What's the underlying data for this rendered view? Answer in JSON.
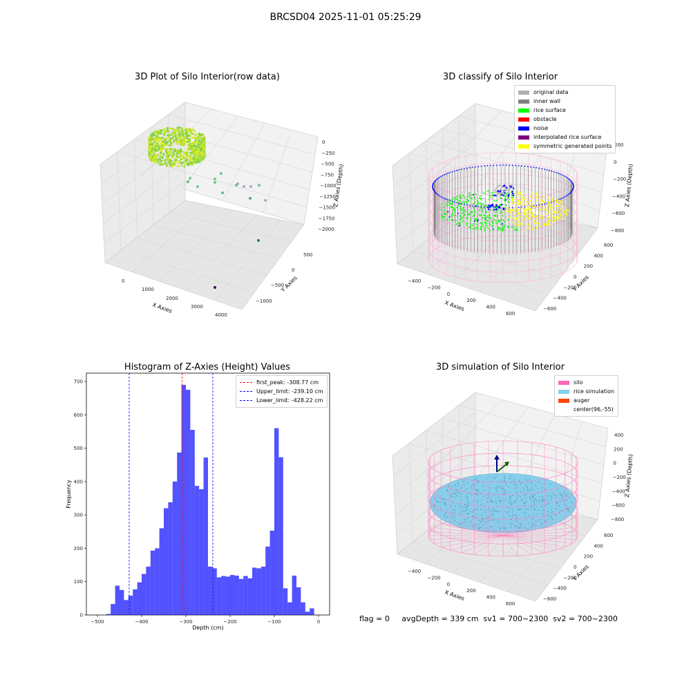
{
  "suptitle": "BRCSD04 2025-11-01 05:25:29",
  "panels": {
    "raw": {
      "title": "3D Plot of Silo Interior(row data)",
      "xlabel": "X Axies",
      "ylabel": "Y Axies",
      "zlabel": "Z Axies (Depth)",
      "xticks": [
        "0",
        "1000",
        "2000",
        "3000",
        "4000"
      ],
      "yticks": [
        "500",
        "0",
        "−500",
        "−1000"
      ],
      "zticks": [
        "0",
        "−250",
        "−500",
        "−750",
        "−1000",
        "−1250",
        "−1500",
        "−1750",
        "−2000"
      ]
    },
    "classify": {
      "title": "3D classify of Silo Interior",
      "xlabel": "X Axies",
      "ylabel": "Y Axies",
      "zlabel": "Z Axies (Depth)",
      "xticks": [
        "−400",
        "−200",
        "0",
        "200",
        "400",
        "600"
      ],
      "yticks": [
        "600",
        "400",
        "200",
        "0",
        "−200",
        "−400",
        "−600"
      ],
      "zticks": [
        "200",
        "0",
        "−200",
        "−400",
        "−600",
        "−800"
      ],
      "legend": [
        {
          "label": "original data",
          "color": "#b0b0b0"
        },
        {
          "label": "inner wall",
          "color": "#808080"
        },
        {
          "label": "rice surface",
          "color": "#00ff00"
        },
        {
          "label": "obstacle",
          "color": "#ff0000"
        },
        {
          "label": "noise",
          "color": "#0000ff"
        },
        {
          "label": "interpolated rice surface",
          "color": "#800080"
        },
        {
          "label": "symmetric generated points",
          "color": "#ffff00"
        }
      ]
    },
    "simulation": {
      "title": "3D simulation of Silo Interior",
      "xlabel": "X Axies",
      "ylabel": "Y Axies",
      "zlabel": "Z Axies (Depth)",
      "xticks": [
        "−400",
        "−200",
        "0",
        "200",
        "400",
        "600"
      ],
      "yticks": [
        "600",
        "400",
        "200",
        "0",
        "−200",
        "−400",
        "−600"
      ],
      "zticks": [
        "400",
        "200",
        "0",
        "−200",
        "−400",
        "−600",
        "−800"
      ],
      "legend": [
        {
          "label": "silo",
          "color": "#ff69b4"
        },
        {
          "label": "rice simulation",
          "color": "#87ceeb"
        },
        {
          "label": "auger",
          "color": "#ff4500"
        },
        {
          "label": "center(96,-55)",
          "color": "#ffffff"
        }
      ]
    }
  },
  "chart_data": [
    {
      "type": "scatter",
      "title": "3D Plot of Silo Interior(row data)",
      "xlabel": "X Axies",
      "ylabel": "Y Axies",
      "zlabel": "Z Axies (Depth)",
      "xlim": [
        -500,
        4300
      ],
      "ylim": [
        -1300,
        800
      ],
      "zlim": [
        -2100,
        100
      ]
    },
    {
      "type": "scatter",
      "title": "3D classify of Silo Interior",
      "xlabel": "X Axies",
      "ylabel": "Y Axies",
      "zlabel": "Z Axies (Depth)"
    },
    {
      "type": "bar",
      "title": "Histogram of Z-Axies (Height) Values",
      "xlabel": "Depth (cm)",
      "ylabel": "Frequency",
      "xlim": [
        -525,
        25
      ],
      "ylim": [
        0,
        725
      ],
      "xticks": [
        -500,
        -400,
        -300,
        -200,
        -100,
        0
      ],
      "yticks": [
        0,
        100,
        200,
        300,
        400,
        500,
        600,
        700
      ],
      "bin_start": -480,
      "bin_width": 10,
      "values": [
        3,
        33,
        88,
        75,
        45,
        58,
        77,
        98,
        123,
        145,
        193,
        200,
        260,
        320,
        338,
        400,
        487,
        690,
        675,
        555,
        387,
        377,
        472,
        145,
        140,
        113,
        117,
        115,
        120,
        118,
        108,
        117,
        110,
        142,
        140,
        145,
        205,
        253,
        560,
        473,
        80,
        38,
        118,
        83,
        38,
        10,
        20
      ],
      "color": "#0000ff",
      "vlines": [
        {
          "label": "first_peak: -308.77 cm",
          "x": -308.77,
          "color": "#ff0000"
        },
        {
          "label": "Upper_limit: -239.10 cm",
          "x": -239.1,
          "color": "#0000ff"
        },
        {
          "label": "Lower_limit: -428.22 cm",
          "x": -428.22,
          "color": "#0000ff"
        }
      ],
      "legend_position": "top-right"
    },
    {
      "type": "scatter",
      "title": "3D simulation of Silo Interior",
      "xlabel": "X Axies",
      "ylabel": "Y Axies",
      "zlabel": "Z Axies (Depth)"
    }
  ],
  "footer": "flag = 0     avgDepth = 339 cm  sv1 = 700~2300  sv2 = 700~2300"
}
